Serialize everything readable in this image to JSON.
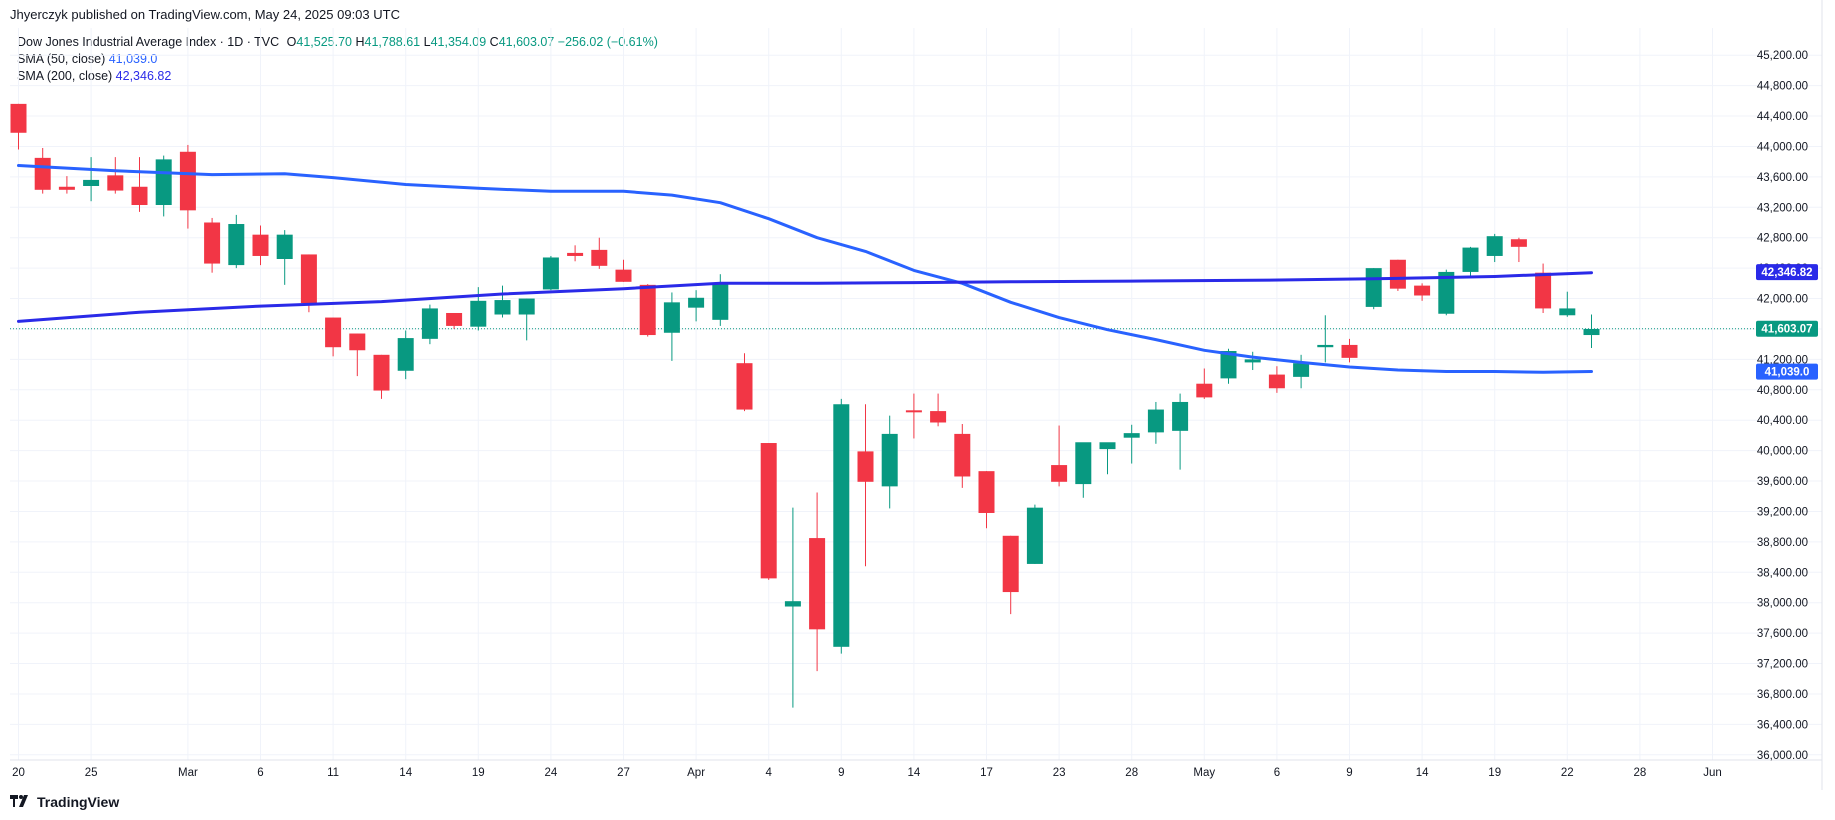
{
  "header": {
    "published": "Jhyerczyk published on TradingView.com, May 24, 2025 09:03 UTC"
  },
  "legend": {
    "symbol": "Dow Jones Industrial Average Index · 1D · TVC",
    "o_label": "O",
    "o": "41,525.70",
    "h_label": "H",
    "h": "41,788.61",
    "l_label": "L",
    "l": "41,354.09",
    "c_label": "C",
    "c": "41,603.07",
    "change": "−256.02 (−0.61%)",
    "sma50_label": "SMA (50, close)",
    "sma50_value": "41,039.0",
    "sma200_label": "SMA (200, close)",
    "sma200_value": "42,346.82"
  },
  "footer": {
    "brand": "TradingView",
    "logo_icon": "tradingview-logo-icon"
  },
  "colors": {
    "up": "#089981",
    "down": "#f23645",
    "sma50": "#2962ff",
    "sma200": "#2a2ae8",
    "grid": "#f0f3fa",
    "axis_text": "#131722"
  },
  "chart_data": {
    "type": "candlestick",
    "title": "Dow Jones Industrial Average Index · 1D · TVC",
    "ylim": [
      35800,
      45400
    ],
    "yticks": [
      36000,
      36400,
      36800,
      37200,
      37600,
      38000,
      38400,
      38800,
      39200,
      39600,
      40000,
      40400,
      40800,
      41200,
      41600,
      42000,
      42400,
      42800,
      43200,
      43600,
      44000,
      44400,
      44800,
      45200
    ],
    "ytick_labels": [
      "36,000.00",
      "36,400.00",
      "36,800.00",
      "37,200.00",
      "37,600.00",
      "38,000.00",
      "38,400.00",
      "38,800.00",
      "39,200.00",
      "39,600.00",
      "40,000.00",
      "40,400.00",
      "40,800.00",
      "41,200.00",
      "41,600.00",
      "42,000.00",
      "42,400.00",
      "42,800.00",
      "43,200.00",
      "43,600.00",
      "44,000.00",
      "44,400.00",
      "44,800.00",
      "45,200.00"
    ],
    "xtick_labels": [
      {
        "i": 0,
        "label": "20"
      },
      {
        "i": 3,
        "label": "25"
      },
      {
        "i": 7,
        "label": "Mar"
      },
      {
        "i": 10,
        "label": "6"
      },
      {
        "i": 13,
        "label": "11"
      },
      {
        "i": 16,
        "label": "14"
      },
      {
        "i": 19,
        "label": "19"
      },
      {
        "i": 22,
        "label": "24"
      },
      {
        "i": 25,
        "label": "27"
      },
      {
        "i": 28,
        "label": "Apr"
      },
      {
        "i": 31,
        "label": "4"
      },
      {
        "i": 34,
        "label": "9"
      },
      {
        "i": 37,
        "label": "14"
      },
      {
        "i": 40,
        "label": "17"
      },
      {
        "i": 43,
        "label": "23"
      },
      {
        "i": 46,
        "label": "28"
      },
      {
        "i": 49,
        "label": "May"
      },
      {
        "i": 52,
        "label": "6"
      },
      {
        "i": 55,
        "label": "9"
      },
      {
        "i": 58,
        "label": "14"
      },
      {
        "i": 61,
        "label": "19"
      },
      {
        "i": 64,
        "label": "22"
      },
      {
        "i": 67,
        "label": "28"
      },
      {
        "i": 70,
        "label": "Jun"
      }
    ],
    "candles": [
      {
        "o": 44560,
        "h": 44560,
        "l": 43960,
        "c": 44180
      },
      {
        "o": 43850,
        "h": 43980,
        "l": 43380,
        "c": 43430
      },
      {
        "o": 43470,
        "h": 43610,
        "l": 43380,
        "c": 43430
      },
      {
        "o": 43480,
        "h": 43860,
        "l": 43280,
        "c": 43560
      },
      {
        "o": 43620,
        "h": 43860,
        "l": 43380,
        "c": 43420
      },
      {
        "o": 43470,
        "h": 43860,
        "l": 43140,
        "c": 43230
      },
      {
        "o": 43230,
        "h": 43880,
        "l": 43080,
        "c": 43830
      },
      {
        "o": 43930,
        "h": 44020,
        "l": 42920,
        "c": 43160
      },
      {
        "o": 43000,
        "h": 43060,
        "l": 42340,
        "c": 42460
      },
      {
        "o": 42440,
        "h": 43100,
        "l": 42400,
        "c": 42980
      },
      {
        "o": 42840,
        "h": 42960,
        "l": 42440,
        "c": 42560
      },
      {
        "o": 42520,
        "h": 42900,
        "l": 42180,
        "c": 42840
      },
      {
        "o": 42580,
        "h": 42580,
        "l": 41820,
        "c": 41940
      },
      {
        "o": 41750,
        "h": 41750,
        "l": 41240,
        "c": 41360
      },
      {
        "o": 41540,
        "h": 41540,
        "l": 40980,
        "c": 41320
      },
      {
        "o": 41260,
        "h": 41260,
        "l": 40680,
        "c": 40790
      },
      {
        "o": 41050,
        "h": 41580,
        "l": 40940,
        "c": 41480
      },
      {
        "o": 41470,
        "h": 41920,
        "l": 41400,
        "c": 41870
      },
      {
        "o": 41810,
        "h": 41810,
        "l": 41600,
        "c": 41640
      },
      {
        "o": 41630,
        "h": 42150,
        "l": 41580,
        "c": 41970
      },
      {
        "o": 41790,
        "h": 42170,
        "l": 41750,
        "c": 41980
      },
      {
        "o": 41790,
        "h": 42000,
        "l": 41450,
        "c": 42000
      },
      {
        "o": 42120,
        "h": 42560,
        "l": 42110,
        "c": 42540
      },
      {
        "o": 42600,
        "h": 42700,
        "l": 42490,
        "c": 42560
      },
      {
        "o": 42640,
        "h": 42800,
        "l": 42390,
        "c": 42430
      },
      {
        "o": 42380,
        "h": 42510,
        "l": 42220,
        "c": 42220
      },
      {
        "o": 42180,
        "h": 42190,
        "l": 41500,
        "c": 41520
      },
      {
        "o": 41550,
        "h": 42080,
        "l": 41180,
        "c": 41950
      },
      {
        "o": 41880,
        "h": 42110,
        "l": 41700,
        "c": 42010
      },
      {
        "o": 41720,
        "h": 42320,
        "l": 41640,
        "c": 42200
      },
      {
        "o": 41150,
        "h": 41280,
        "l": 40520,
        "c": 40540
      },
      {
        "o": 40100,
        "h": 40100,
        "l": 38300,
        "c": 38320
      },
      {
        "o": 37950,
        "h": 39250,
        "l": 36620,
        "c": 38020
      },
      {
        "o": 38850,
        "h": 39450,
        "l": 37100,
        "c": 37650
      },
      {
        "o": 37420,
        "h": 40680,
        "l": 37330,
        "c": 40610
      },
      {
        "o": 39990,
        "h": 40610,
        "l": 38480,
        "c": 39590
      },
      {
        "o": 39530,
        "h": 40460,
        "l": 39240,
        "c": 40220
      },
      {
        "o": 40530,
        "h": 40750,
        "l": 40160,
        "c": 40520
      },
      {
        "o": 40520,
        "h": 40750,
        "l": 40320,
        "c": 40370
      },
      {
        "o": 40220,
        "h": 40350,
        "l": 39510,
        "c": 39660
      },
      {
        "o": 39730,
        "h": 39730,
        "l": 38980,
        "c": 39180
      },
      {
        "o": 38880,
        "h": 38880,
        "l": 37850,
        "c": 38140
      },
      {
        "o": 38510,
        "h": 39290,
        "l": 38510,
        "c": 39250
      },
      {
        "o": 39810,
        "h": 40330,
        "l": 39530,
        "c": 39590
      },
      {
        "o": 39560,
        "h": 40100,
        "l": 39380,
        "c": 40110
      },
      {
        "o": 40020,
        "h": 40100,
        "l": 39690,
        "c": 40110
      },
      {
        "o": 40170,
        "h": 40340,
        "l": 39830,
        "c": 40230
      },
      {
        "o": 40240,
        "h": 40640,
        "l": 40090,
        "c": 40540
      },
      {
        "o": 40260,
        "h": 40750,
        "l": 39750,
        "c": 40640
      },
      {
        "o": 40880,
        "h": 41080,
        "l": 40680,
        "c": 40700
      },
      {
        "o": 40950,
        "h": 41340,
        "l": 40880,
        "c": 41310
      },
      {
        "o": 41160,
        "h": 41300,
        "l": 41060,
        "c": 41200
      },
      {
        "o": 41000,
        "h": 41110,
        "l": 40760,
        "c": 40820
      },
      {
        "o": 40970,
        "h": 41260,
        "l": 40820,
        "c": 41150
      },
      {
        "o": 41360,
        "h": 41780,
        "l": 41160,
        "c": 41390
      },
      {
        "o": 41390,
        "h": 41470,
        "l": 41160,
        "c": 41220
      },
      {
        "o": 41890,
        "h": 42400,
        "l": 41860,
        "c": 42400
      },
      {
        "o": 42510,
        "h": 42510,
        "l": 42100,
        "c": 42130
      },
      {
        "o": 42170,
        "h": 42200,
        "l": 41970,
        "c": 42040
      },
      {
        "o": 41800,
        "h": 42380,
        "l": 41780,
        "c": 42350
      },
      {
        "o": 42350,
        "h": 42680,
        "l": 42290,
        "c": 42670
      },
      {
        "o": 42560,
        "h": 42850,
        "l": 42480,
        "c": 42820
      },
      {
        "o": 42780,
        "h": 42800,
        "l": 42480,
        "c": 42680
      },
      {
        "o": 42340,
        "h": 42460,
        "l": 41810,
        "c": 41870
      },
      {
        "o": 41780,
        "h": 42090,
        "l": 41760,
        "c": 41870
      },
      {
        "o": 41520,
        "h": 41790,
        "l": 41350,
        "c": 41600
      }
    ],
    "series": [
      {
        "name": "SMA (50, close)",
        "points": [
          [
            0,
            43750
          ],
          [
            4,
            43680
          ],
          [
            8,
            43630
          ],
          [
            11,
            43640
          ],
          [
            13,
            43590
          ],
          [
            16,
            43500
          ],
          [
            19,
            43450
          ],
          [
            22,
            43410
          ],
          [
            25,
            43410
          ],
          [
            27,
            43360
          ],
          [
            29,
            43260
          ],
          [
            31,
            43050
          ],
          [
            33,
            42800
          ],
          [
            35,
            42620
          ],
          [
            37,
            42370
          ],
          [
            39,
            42200
          ],
          [
            41,
            41950
          ],
          [
            43,
            41750
          ],
          [
            45,
            41590
          ],
          [
            47,
            41460
          ],
          [
            49,
            41320
          ],
          [
            51,
            41230
          ],
          [
            53,
            41160
          ],
          [
            55,
            41100
          ],
          [
            57,
            41060
          ],
          [
            59,
            41040
          ],
          [
            61,
            41040
          ],
          [
            63,
            41030
          ],
          [
            65,
            41040
          ]
        ]
      },
      {
        "name": "SMA (200, close)",
        "points": [
          [
            0,
            41700
          ],
          [
            5,
            41820
          ],
          [
            10,
            41900
          ],
          [
            15,
            41960
          ],
          [
            20,
            42060
          ],
          [
            25,
            42130
          ],
          [
            29,
            42200
          ],
          [
            33,
            42200
          ],
          [
            37,
            42210
          ],
          [
            41,
            42220
          ],
          [
            46,
            42230
          ],
          [
            51,
            42240
          ],
          [
            56,
            42260
          ],
          [
            61,
            42290
          ],
          [
            65,
            42340
          ]
        ]
      }
    ],
    "last_price": 41603.07,
    "last_price_label": "41,603.07",
    "sma200_tag": "42,346.82",
    "sma50_tag": "41,039.0"
  }
}
